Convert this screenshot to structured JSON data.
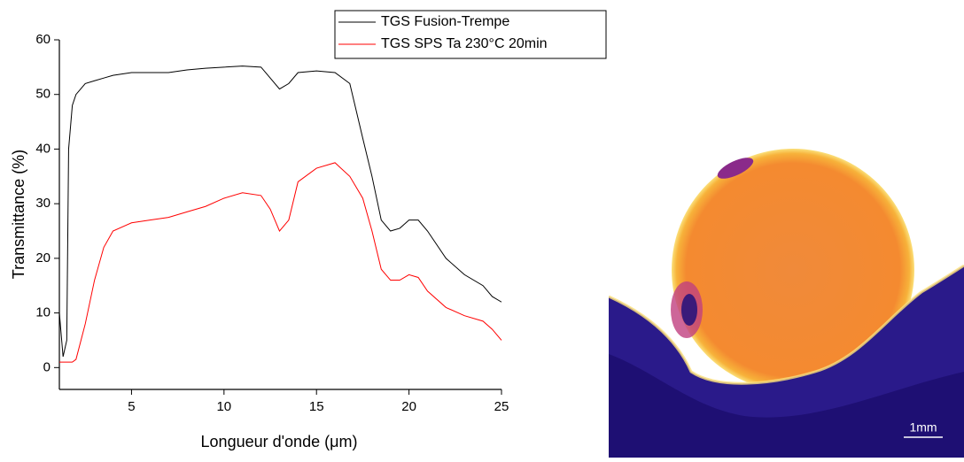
{
  "chart_data": {
    "type": "line",
    "x_label": "Longueur d'onde (μm)",
    "y_label": "Transmittance (%)",
    "x": [
      1.1,
      1.3,
      1.5,
      1.6,
      1.8,
      2,
      2.5,
      3,
      3.5,
      4,
      5,
      6,
      7,
      8,
      9,
      10,
      11,
      12,
      12.5,
      13,
      13.5,
      14,
      15,
      16,
      16.8,
      17.5,
      18,
      18.5,
      19,
      19.5,
      20,
      20.5,
      21,
      22,
      23,
      24,
      24.5,
      25
    ],
    "series": [
      {
        "name": "TGS Fusion-Trempe",
        "color": "#000000",
        "values": [
          10,
          2,
          5,
          40,
          48,
          50,
          52,
          52.5,
          53,
          53.5,
          54,
          54,
          54,
          54.5,
          54.8,
          55,
          55.2,
          55,
          53,
          51,
          52,
          54,
          54.3,
          54,
          52,
          42,
          35,
          27,
          25,
          25.5,
          27,
          27,
          25,
          20,
          17,
          15,
          13,
          12
        ]
      },
      {
        "name": "TGS SPS Ta 230°C 20min",
        "color": "#ff0000",
        "values": [
          1,
          1,
          1,
          1,
          1,
          1.5,
          8,
          16,
          22,
          25,
          26.5,
          27,
          27.5,
          28.5,
          29.5,
          31,
          32,
          31.5,
          29,
          25,
          27,
          34,
          36.5,
          37.5,
          35,
          31,
          25,
          18,
          16,
          16,
          17,
          16.5,
          14,
          11,
          9.5,
          8.5,
          7,
          5
        ]
      }
    ],
    "xlim": [
      1.1,
      25
    ],
    "xticks": [
      5,
      10,
      15,
      20,
      25
    ],
    "ylim": [
      -4,
      60
    ],
    "yticks": [
      0,
      10,
      20,
      30,
      40,
      50,
      60
    ],
    "grid": false
  },
  "image": {
    "scale_label": "1mm"
  }
}
